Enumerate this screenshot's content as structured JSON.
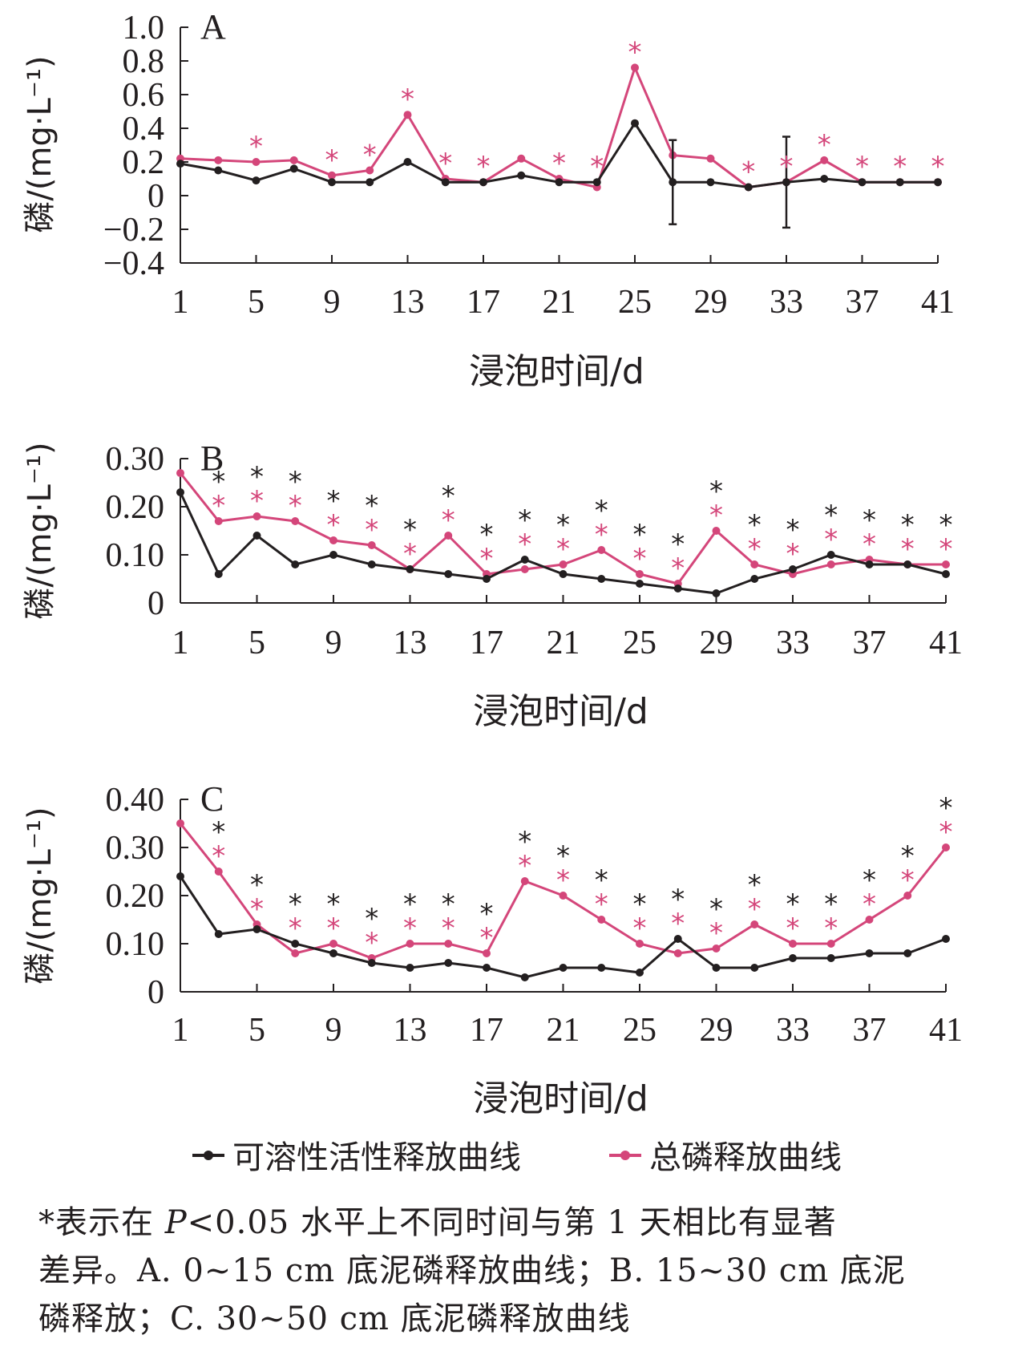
{
  "chart_data": [
    {
      "type": "line",
      "panel_label": "A",
      "ylabel": "磷/(mg·L⁻¹)",
      "xlabel": "浸泡时间/d",
      "ylim": [
        -0.4,
        1.0
      ],
      "yticks": [
        1.0,
        0.8,
        0.6,
        0.4,
        0.2,
        0,
        -0.2,
        -0.4
      ],
      "ytick_labels": [
        "1.0",
        "0.8",
        "0.6",
        "0.4",
        "0.2",
        "0",
        "−0.2",
        "−0.4"
      ],
      "xlim": [
        1,
        41
      ],
      "xticks": [
        1,
        5,
        9,
        13,
        17,
        21,
        25,
        29,
        33,
        37,
        41
      ],
      "x": [
        1,
        3,
        5,
        7,
        9,
        11,
        13,
        15,
        17,
        19,
        21,
        23,
        25,
        27,
        29,
        31,
        33,
        35,
        37,
        39,
        41
      ],
      "series": [
        {
          "name": "可溶性活性释放曲线",
          "color": "#231f20",
          "values": [
            0.19,
            0.15,
            0.09,
            0.16,
            0.08,
            0.08,
            0.2,
            0.08,
            0.08,
            0.12,
            0.08,
            0.08,
            0.43,
            0.08,
            0.08,
            0.05,
            0.08,
            0.1,
            0.08,
            0.08,
            0.08
          ],
          "error": [
            0,
            0,
            0,
            0,
            0,
            0,
            0,
            0,
            0,
            0,
            0,
            0,
            0,
            0.25,
            0,
            0,
            0.27,
            0,
            0,
            0,
            0
          ]
        },
        {
          "name": "总磷释放曲线",
          "color": "#d4467a",
          "values": [
            0.22,
            0.21,
            0.2,
            0.21,
            0.12,
            0.15,
            0.48,
            0.1,
            0.08,
            0.22,
            0.1,
            0.05,
            0.76,
            0.24,
            0.22,
            0.05,
            0.08,
            0.21,
            0.08,
            0.08,
            0.08
          ],
          "error": []
        }
      ],
      "sig_marks": [
        {
          "x": 5,
          "color": "#d4467a"
        },
        {
          "x": 9,
          "color": "#d4467a"
        },
        {
          "x": 11,
          "color": "#d4467a"
        },
        {
          "x": 13,
          "color": "#d4467a"
        },
        {
          "x": 15,
          "color": "#d4467a"
        },
        {
          "x": 17,
          "color": "#d4467a"
        },
        {
          "x": 21,
          "color": "#d4467a"
        },
        {
          "x": 23,
          "color": "#d4467a"
        },
        {
          "x": 25,
          "color": "#d4467a"
        },
        {
          "x": 31,
          "color": "#d4467a"
        },
        {
          "x": 33,
          "color": "#d4467a"
        },
        {
          "x": 35,
          "color": "#d4467a"
        },
        {
          "x": 37,
          "color": "#d4467a"
        },
        {
          "x": 39,
          "color": "#d4467a"
        },
        {
          "x": 41,
          "color": "#d4467a"
        }
      ]
    },
    {
      "type": "line",
      "panel_label": "B",
      "ylabel": "磷/(mg·L⁻¹)",
      "xlabel": "浸泡时间/d",
      "ylim": [
        0,
        0.3
      ],
      "yticks": [
        0.3,
        0.2,
        0.1,
        0
      ],
      "ytick_labels": [
        "0.30",
        "0.20",
        "0.10",
        "0"
      ],
      "xlim": [
        1,
        41
      ],
      "xticks": [
        1,
        5,
        9,
        13,
        17,
        21,
        25,
        29,
        33,
        37,
        41
      ],
      "x": [
        1,
        3,
        5,
        7,
        9,
        11,
        13,
        15,
        17,
        19,
        21,
        23,
        25,
        27,
        29,
        31,
        33,
        35,
        37,
        39,
        41
      ],
      "series": [
        {
          "name": "可溶性活性释放曲线",
          "color": "#231f20",
          "values": [
            0.23,
            0.06,
            0.14,
            0.08,
            0.1,
            0.08,
            0.07,
            0.06,
            0.05,
            0.09,
            0.06,
            0.05,
            0.04,
            0.03,
            0.02,
            0.05,
            0.07,
            0.1,
            0.08,
            0.08,
            0.06
          ],
          "error": []
        },
        {
          "name": "总磷释放曲线",
          "color": "#d4467a",
          "values": [
            0.27,
            0.17,
            0.18,
            0.17,
            0.13,
            0.12,
            0.07,
            0.14,
            0.06,
            0.07,
            0.08,
            0.11,
            0.06,
            0.04,
            0.15,
            0.08,
            0.06,
            0.08,
            0.09,
            0.08,
            0.08
          ],
          "error": []
        }
      ],
      "sig_marks": [
        {
          "x": 3,
          "color": "#d4467a"
        },
        {
          "x": 3,
          "color": "#231f20"
        },
        {
          "x": 5,
          "color": "#d4467a"
        },
        {
          "x": 5,
          "color": "#231f20"
        },
        {
          "x": 7,
          "color": "#d4467a"
        },
        {
          "x": 7,
          "color": "#231f20"
        },
        {
          "x": 9,
          "color": "#d4467a"
        },
        {
          "x": 9,
          "color": "#231f20"
        },
        {
          "x": 11,
          "color": "#d4467a"
        },
        {
          "x": 11,
          "color": "#231f20"
        },
        {
          "x": 13,
          "color": "#d4467a"
        },
        {
          "x": 13,
          "color": "#231f20"
        },
        {
          "x": 15,
          "color": "#d4467a"
        },
        {
          "x": 15,
          "color": "#231f20"
        },
        {
          "x": 17,
          "color": "#d4467a"
        },
        {
          "x": 17,
          "color": "#231f20"
        },
        {
          "x": 19,
          "color": "#d4467a"
        },
        {
          "x": 19,
          "color": "#231f20"
        },
        {
          "x": 21,
          "color": "#d4467a"
        },
        {
          "x": 21,
          "color": "#231f20"
        },
        {
          "x": 23,
          "color": "#d4467a"
        },
        {
          "x": 23,
          "color": "#231f20"
        },
        {
          "x": 25,
          "color": "#d4467a"
        },
        {
          "x": 25,
          "color": "#231f20"
        },
        {
          "x": 27,
          "color": "#d4467a"
        },
        {
          "x": 27,
          "color": "#231f20"
        },
        {
          "x": 29,
          "color": "#d4467a"
        },
        {
          "x": 29,
          "color": "#231f20"
        },
        {
          "x": 31,
          "color": "#d4467a"
        },
        {
          "x": 31,
          "color": "#231f20"
        },
        {
          "x": 33,
          "color": "#d4467a"
        },
        {
          "x": 33,
          "color": "#231f20"
        },
        {
          "x": 35,
          "color": "#d4467a"
        },
        {
          "x": 35,
          "color": "#231f20"
        },
        {
          "x": 37,
          "color": "#d4467a"
        },
        {
          "x": 37,
          "color": "#231f20"
        },
        {
          "x": 39,
          "color": "#d4467a"
        },
        {
          "x": 39,
          "color": "#231f20"
        },
        {
          "x": 41,
          "color": "#d4467a"
        },
        {
          "x": 41,
          "color": "#231f20"
        }
      ]
    },
    {
      "type": "line",
      "panel_label": "C",
      "ylabel": "磷/(mg·L⁻¹)",
      "xlabel": "浸泡时间/d",
      "ylim": [
        0,
        0.4
      ],
      "yticks": [
        0.4,
        0.3,
        0.2,
        0.1,
        0
      ],
      "ytick_labels": [
        "0.40",
        "0.30",
        "0.20",
        "0.10",
        "0"
      ],
      "xlim": [
        1,
        41
      ],
      "xticks": [
        1,
        5,
        9,
        13,
        17,
        21,
        25,
        29,
        33,
        37,
        41
      ],
      "x": [
        1,
        3,
        5,
        7,
        9,
        11,
        13,
        15,
        17,
        19,
        21,
        23,
        25,
        27,
        29,
        31,
        33,
        35,
        37,
        39,
        41
      ],
      "series": [
        {
          "name": "可溶性活性释放曲线",
          "color": "#231f20",
          "values": [
            0.24,
            0.12,
            0.13,
            0.1,
            0.08,
            0.06,
            0.05,
            0.06,
            0.05,
            0.03,
            0.05,
            0.05,
            0.04,
            0.11,
            0.05,
            0.05,
            0.07,
            0.07,
            0.08,
            0.08,
            0.11
          ],
          "error": []
        },
        {
          "name": "总磷释放曲线",
          "color": "#d4467a",
          "values": [
            0.35,
            0.25,
            0.14,
            0.08,
            0.1,
            0.07,
            0.1,
            0.1,
            0.08,
            0.23,
            0.2,
            0.15,
            0.1,
            0.08,
            0.09,
            0.14,
            0.1,
            0.1,
            0.15,
            0.2,
            0.3
          ],
          "error": []
        }
      ],
      "sig_marks": [
        {
          "x": 3,
          "color": "#d4467a"
        },
        {
          "x": 3,
          "color": "#231f20"
        },
        {
          "x": 5,
          "color": "#d4467a"
        },
        {
          "x": 5,
          "color": "#231f20"
        },
        {
          "x": 7,
          "color": "#d4467a"
        },
        {
          "x": 7,
          "color": "#231f20"
        },
        {
          "x": 9,
          "color": "#d4467a"
        },
        {
          "x": 9,
          "color": "#231f20"
        },
        {
          "x": 11,
          "color": "#d4467a"
        },
        {
          "x": 11,
          "color": "#231f20"
        },
        {
          "x": 13,
          "color": "#d4467a"
        },
        {
          "x": 13,
          "color": "#231f20"
        },
        {
          "x": 15,
          "color": "#d4467a"
        },
        {
          "x": 15,
          "color": "#231f20"
        },
        {
          "x": 17,
          "color": "#d4467a"
        },
        {
          "x": 17,
          "color": "#231f20"
        },
        {
          "x": 19,
          "color": "#d4467a"
        },
        {
          "x": 19,
          "color": "#231f20"
        },
        {
          "x": 21,
          "color": "#d4467a"
        },
        {
          "x": 21,
          "color": "#231f20"
        },
        {
          "x": 23,
          "color": "#d4467a"
        },
        {
          "x": 23,
          "color": "#231f20"
        },
        {
          "x": 25,
          "color": "#d4467a"
        },
        {
          "x": 25,
          "color": "#231f20"
        },
        {
          "x": 27,
          "color": "#d4467a"
        },
        {
          "x": 27,
          "color": "#231f20"
        },
        {
          "x": 29,
          "color": "#d4467a"
        },
        {
          "x": 29,
          "color": "#231f20"
        },
        {
          "x": 31,
          "color": "#d4467a"
        },
        {
          "x": 31,
          "color": "#231f20"
        },
        {
          "x": 33,
          "color": "#d4467a"
        },
        {
          "x": 33,
          "color": "#231f20"
        },
        {
          "x": 35,
          "color": "#d4467a"
        },
        {
          "x": 35,
          "color": "#231f20"
        },
        {
          "x": 37,
          "color": "#d4467a"
        },
        {
          "x": 37,
          "color": "#231f20"
        },
        {
          "x": 39,
          "color": "#d4467a"
        },
        {
          "x": 39,
          "color": "#231f20"
        },
        {
          "x": 41,
          "color": "#d4467a"
        },
        {
          "x": 41,
          "color": "#231f20"
        }
      ]
    }
  ],
  "sig_symbol": "*",
  "legend": {
    "srp_label": "可溶性活性释放曲线",
    "tp_label": "总磷释放曲线",
    "srp_color": "#231f20",
    "tp_color": "#d4467a"
  },
  "caption": {
    "line1_a": "*表示在 ",
    "line1_p": "P",
    "line1_b": "<0.05 水平上不同时间与第 1 天相比有显著",
    "line2": "差异。A. 0~15 cm 底泥磷释放曲线；B. 15~30 cm 底泥",
    "line3": "磷释放；C. 30~50 cm 底泥磷释放曲线"
  }
}
